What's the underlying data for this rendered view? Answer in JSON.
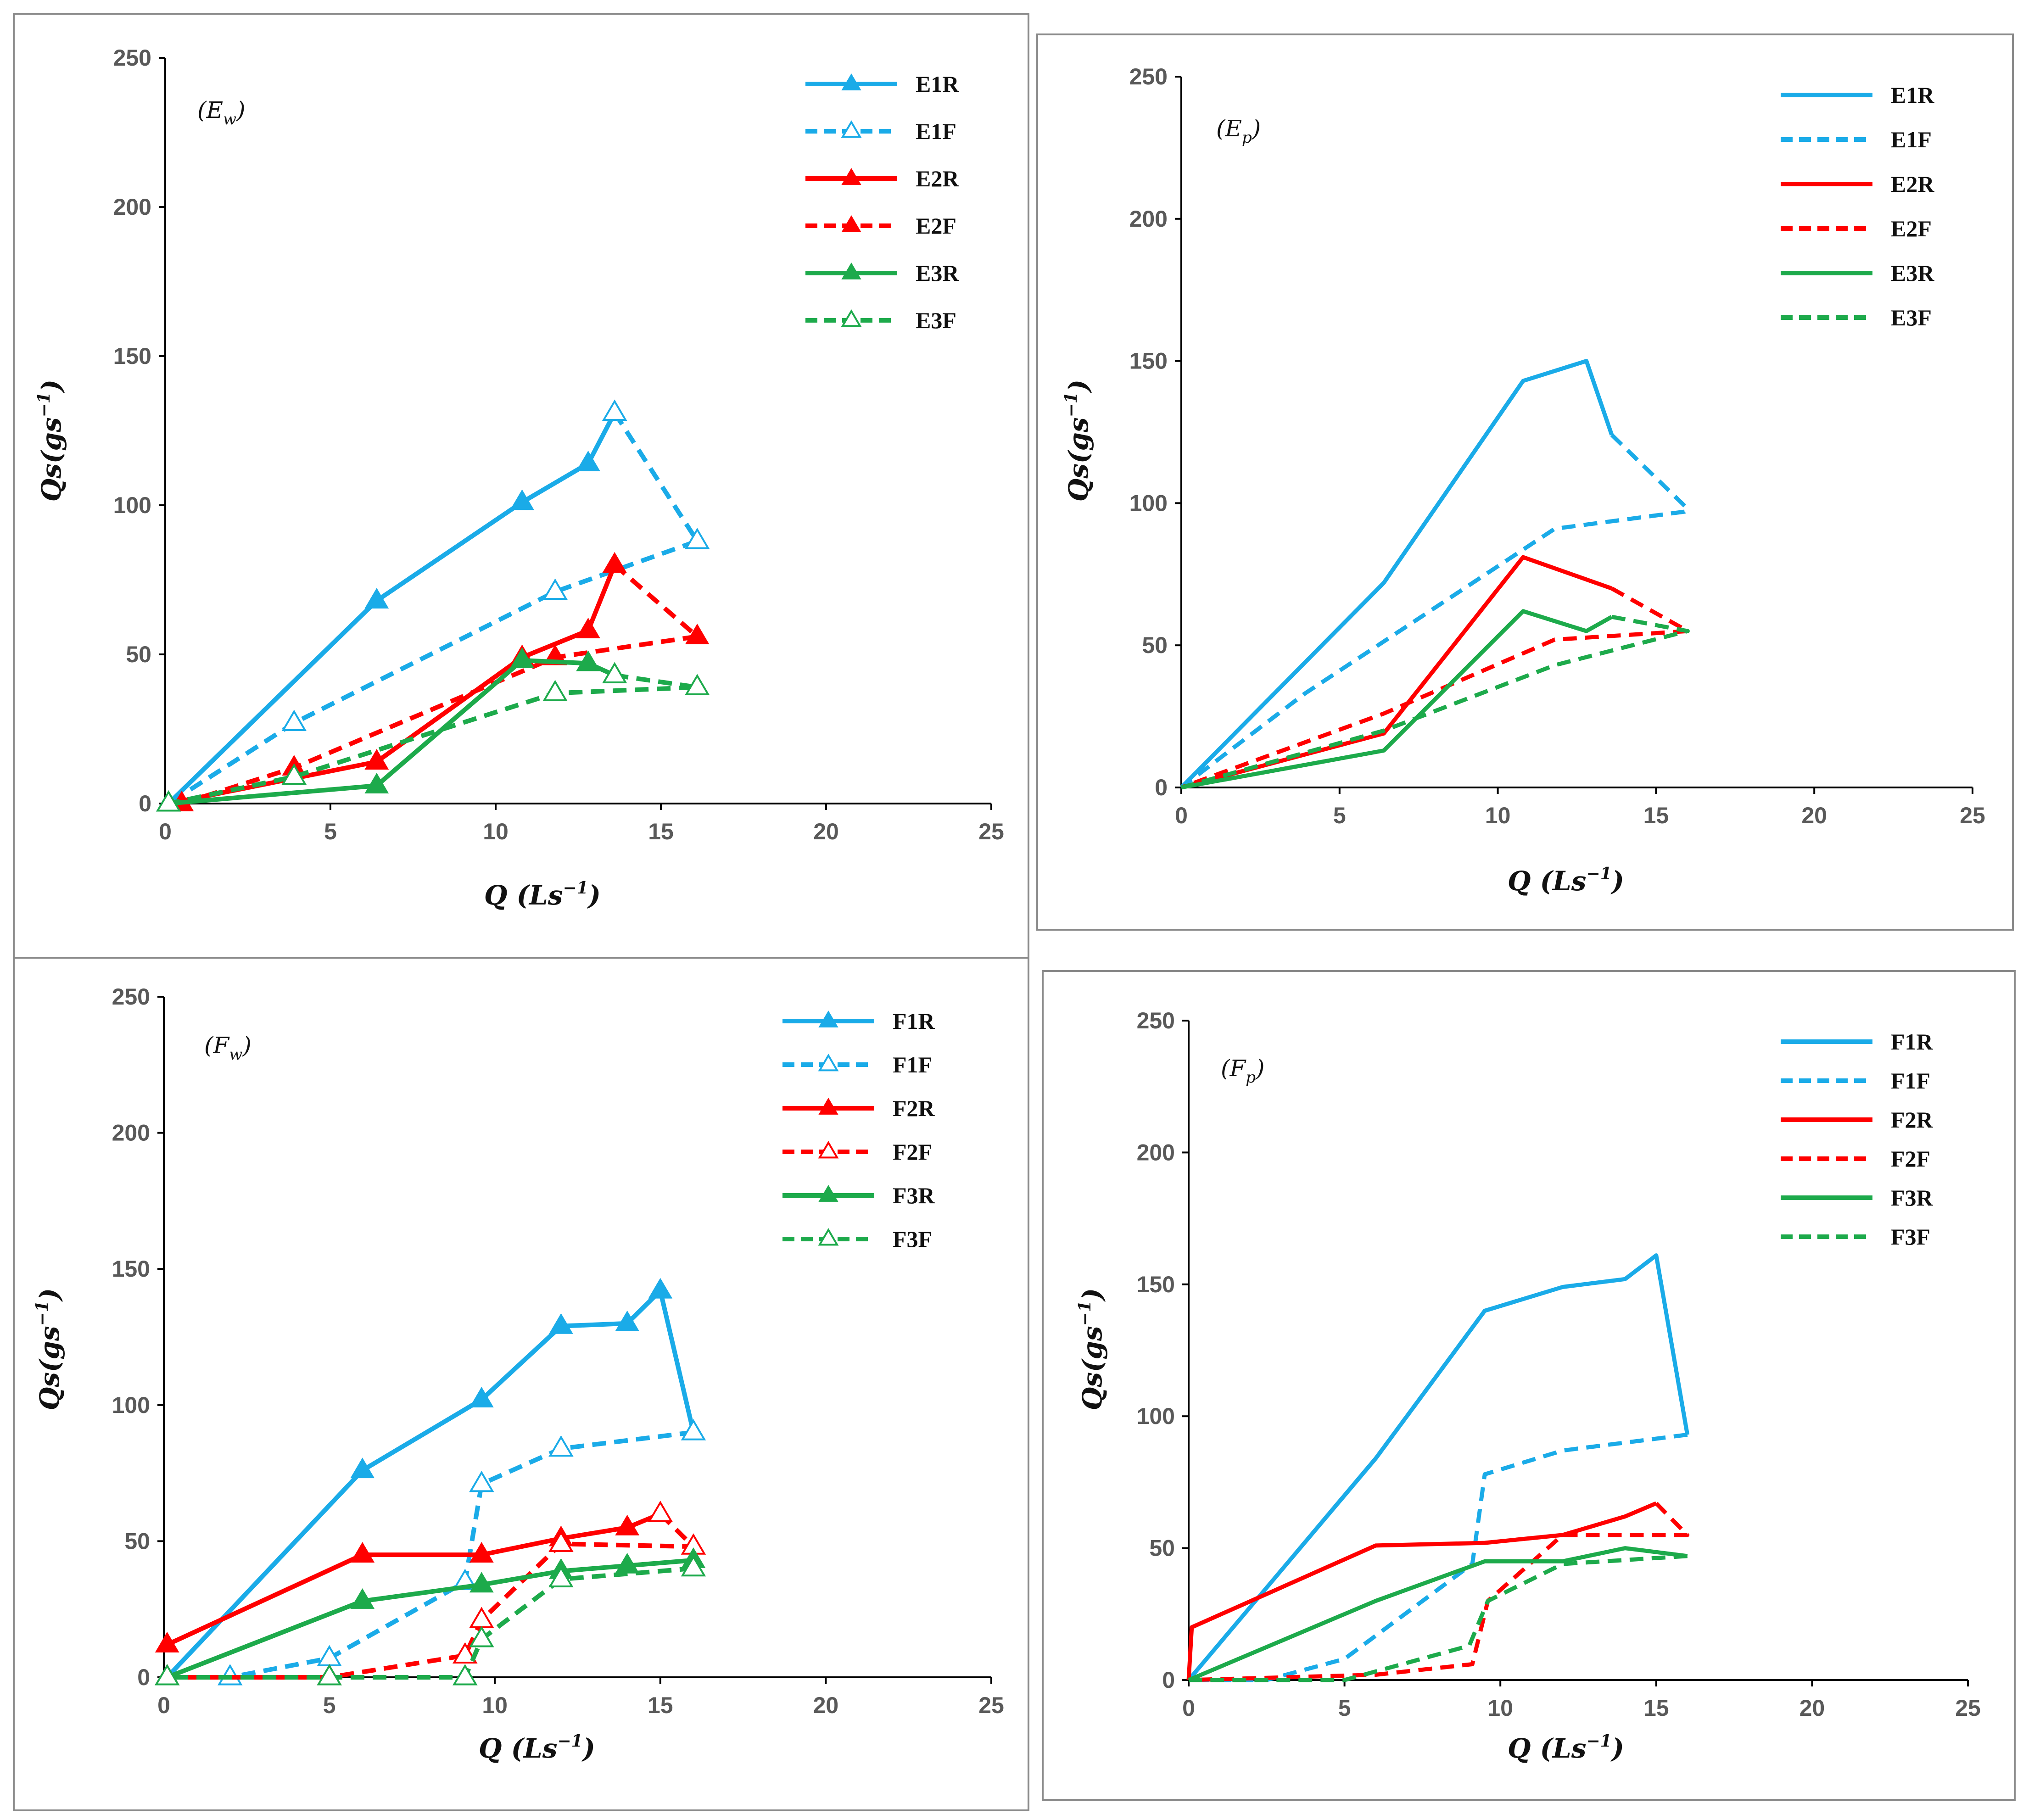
{
  "colors": {
    "blue": "#1AABE8",
    "red": "#FF0000",
    "green": "#1DAA4B",
    "axis": "#000000",
    "tick": "#595959"
  },
  "chart_data": [
    {
      "type": "line",
      "panel_label": "(E",
      "panel_label_sub": "w",
      "panel_label_close": ")",
      "xlabel": "Q (Ls",
      "xlabel_sup": "−1",
      "xlabel_close": ")",
      "ylabel": "Qs(gs",
      "ylabel_sup": "−1",
      "ylabel_close": ")",
      "xlim": [
        0,
        25
      ],
      "ylim": [
        0,
        250
      ],
      "xticks": [
        0,
        5,
        10,
        15,
        20,
        25
      ],
      "yticks": [
        0,
        50,
        100,
        150,
        200,
        250
      ],
      "markers": true,
      "series": [
        {
          "name": "E1R",
          "color": "blue",
          "dashed": false,
          "marker": "filled",
          "x": [
            0.1,
            6.4,
            10.8,
            12.8,
            13.6
          ],
          "y": [
            0,
            68,
            101,
            114,
            131
          ]
        },
        {
          "name": "E1F",
          "color": "blue",
          "dashed": true,
          "marker": "open",
          "x": [
            13.6,
            16.1,
            11.8,
            3.9,
            0.1
          ],
          "y": [
            131,
            88,
            71,
            27,
            0
          ]
        },
        {
          "name": "E2R",
          "color": "red",
          "dashed": false,
          "marker": "filled",
          "x": [
            0.1,
            6.4,
            10.8,
            12.8,
            13.6
          ],
          "y": [
            0,
            14,
            49,
            58,
            80
          ]
        },
        {
          "name": "E2F",
          "color": "red",
          "dashed": true,
          "marker": "filled",
          "x": [
            13.6,
            16.1,
            11.8,
            3.9,
            0.5
          ],
          "y": [
            80,
            56,
            49,
            12,
            0
          ]
        },
        {
          "name": "E3R",
          "color": "green",
          "dashed": false,
          "marker": "filled",
          "x": [
            0.1,
            6.4,
            10.8,
            12.8,
            13.6
          ],
          "y": [
            0,
            6,
            48,
            47,
            43
          ]
        },
        {
          "name": "E3F",
          "color": "green",
          "dashed": true,
          "marker": "open",
          "x": [
            13.6,
            16.1,
            11.8,
            3.9,
            0.1
          ],
          "y": [
            43,
            39,
            37,
            9,
            0
          ]
        }
      ]
    },
    {
      "type": "line",
      "panel_label": "(E",
      "panel_label_sub": "p",
      "panel_label_close": ")",
      "xlabel": "Q (Ls",
      "xlabel_sup": "−1",
      "xlabel_close": ")",
      "ylabel": "Qs(gs",
      "ylabel_sup": "−1",
      "ylabel_close": ")",
      "xlim": [
        0,
        25
      ],
      "ylim": [
        0,
        250
      ],
      "xticks": [
        0,
        5,
        10,
        15,
        20,
        25
      ],
      "yticks": [
        0,
        50,
        100,
        150,
        200,
        250
      ],
      "markers": false,
      "series": [
        {
          "name": "E1R",
          "color": "blue",
          "dashed": false,
          "x": [
            0,
            6.4,
            10.8,
            12.8,
            13.6
          ],
          "y": [
            0,
            72,
            143,
            150,
            124
          ]
        },
        {
          "name": "E1F",
          "color": "blue",
          "dashed": true,
          "x": [
            13.6,
            16,
            15.9,
            11.8,
            3.9,
            0
          ],
          "y": [
            124,
            98,
            97,
            91,
            33,
            0
          ]
        },
        {
          "name": "E2R",
          "color": "red",
          "dashed": false,
          "x": [
            0,
            6.4,
            10.8,
            13.6
          ],
          "y": [
            0,
            19,
            81,
            70
          ]
        },
        {
          "name": "E2F",
          "color": "red",
          "dashed": true,
          "x": [
            13.6,
            16,
            11.8,
            6.4,
            0
          ],
          "y": [
            70,
            55,
            52,
            26,
            0
          ]
        },
        {
          "name": "E3R",
          "color": "green",
          "dashed": false,
          "x": [
            0,
            6.4,
            10.8,
            12.8,
            13.6
          ],
          "y": [
            0,
            13,
            62,
            55,
            60
          ]
        },
        {
          "name": "E3F",
          "color": "green",
          "dashed": true,
          "x": [
            13.6,
            16,
            11.8,
            6.4,
            0
          ],
          "y": [
            60,
            55,
            43,
            20,
            0
          ]
        }
      ]
    },
    {
      "type": "line",
      "panel_label": "(F",
      "panel_label_sub": "w",
      "panel_label_close": ")",
      "xlabel": "Q (Ls",
      "xlabel_sup": "−1",
      "xlabel_close": ")",
      "ylabel": "Qs(gs",
      "ylabel_sup": "−1",
      "ylabel_close": ")",
      "xlim": [
        0,
        25
      ],
      "ylim": [
        0,
        250
      ],
      "xticks": [
        0,
        5,
        10,
        15,
        20,
        25
      ],
      "yticks": [
        0,
        50,
        100,
        150,
        200,
        250
      ],
      "markers": true,
      "series": [
        {
          "name": "F1R",
          "color": "blue",
          "dashed": false,
          "marker": "filled",
          "x": [
            0.1,
            6,
            9.6,
            12,
            14,
            15,
            16
          ],
          "y": [
            0,
            76,
            102,
            129,
            130,
            142,
            90
          ]
        },
        {
          "name": "F1F",
          "color": "blue",
          "dashed": true,
          "marker": "open",
          "x": [
            16,
            12,
            9.6,
            9.1,
            5,
            2,
            0.1
          ],
          "y": [
            90,
            84,
            71,
            35,
            7,
            0,
            0
          ]
        },
        {
          "name": "F2R",
          "color": "red",
          "dashed": false,
          "marker": "filled",
          "x": [
            0.1,
            6,
            9.6,
            12,
            14,
            15
          ],
          "y": [
            12,
            45,
            45,
            51,
            55,
            60
          ]
        },
        {
          "name": "F2F",
          "color": "red",
          "dashed": true,
          "marker": "open",
          "x": [
            15,
            16,
            12,
            9.6,
            9.1,
            5,
            0.1
          ],
          "y": [
            60,
            48,
            49,
            21,
            8,
            0,
            0
          ]
        },
        {
          "name": "F3R",
          "color": "green",
          "dashed": false,
          "marker": "filled",
          "x": [
            0.1,
            6,
            9.6,
            12,
            14,
            16
          ],
          "y": [
            0,
            28,
            34,
            39,
            41,
            43
          ]
        },
        {
          "name": "F3F",
          "color": "green",
          "dashed": true,
          "marker": "open",
          "x": [
            16,
            12,
            9.6,
            9.1,
            5,
            0.1
          ],
          "y": [
            40,
            36,
            14,
            0,
            0,
            0
          ]
        }
      ]
    },
    {
      "type": "line",
      "panel_label": "(F",
      "panel_label_sub": "p",
      "panel_label_close": ")",
      "xlabel": "Q (Ls",
      "xlabel_sup": "−1",
      "xlabel_close": ")",
      "ylabel": "Qs(gs",
      "ylabel_sup": "−1",
      "ylabel_close": ")",
      "xlim": [
        0,
        25
      ],
      "ylim": [
        0,
        250
      ],
      "xticks": [
        0,
        5,
        10,
        15,
        20,
        25
      ],
      "yticks": [
        0,
        50,
        100,
        150,
        200,
        250
      ],
      "markers": false,
      "series": [
        {
          "name": "F1R",
          "color": "blue",
          "dashed": false,
          "x": [
            0,
            6,
            9.5,
            12,
            14,
            15,
            16
          ],
          "y": [
            0,
            84,
            140,
            149,
            152,
            161,
            93
          ]
        },
        {
          "name": "F1F",
          "color": "blue",
          "dashed": true,
          "x": [
            16,
            12,
            9.5,
            9.1,
            5,
            2.5,
            0
          ],
          "y": [
            93,
            87,
            78,
            44,
            8,
            0,
            0
          ]
        },
        {
          "name": "F2R",
          "color": "red",
          "dashed": false,
          "x": [
            0,
            0.1,
            6,
            9.5,
            12,
            14,
            15
          ],
          "y": [
            0,
            20,
            51,
            52,
            55,
            62,
            67
          ]
        },
        {
          "name": "F2F",
          "color": "red",
          "dashed": true,
          "x": [
            15,
            16,
            12,
            9.6,
            9.1,
            6,
            0
          ],
          "y": [
            67,
            55,
            55,
            30,
            6,
            2,
            0
          ]
        },
        {
          "name": "F3R",
          "color": "green",
          "dashed": false,
          "x": [
            0,
            6,
            9.5,
            12,
            14,
            16
          ],
          "y": [
            0,
            30,
            45,
            45,
            50,
            47
          ]
        },
        {
          "name": "F3F",
          "color": "green",
          "dashed": true,
          "x": [
            16,
            12,
            9.6,
            9,
            5,
            0
          ],
          "y": [
            47,
            44,
            30,
            13,
            0,
            0
          ]
        }
      ]
    }
  ]
}
